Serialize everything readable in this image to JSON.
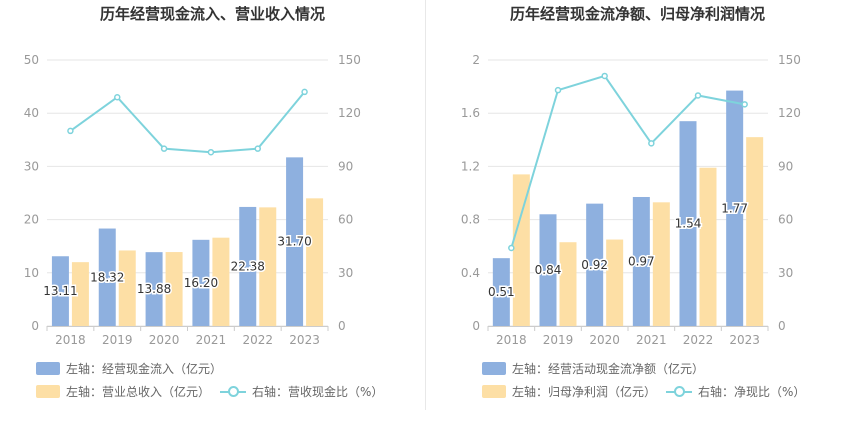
{
  "colors": {
    "bar1": "#8eb0df",
    "bar2": "#fddfa5",
    "line": "#7ed3dc",
    "grid": "#e6e6e6",
    "axisText": "#999999",
    "labelText": "#333333"
  },
  "chart_data": [
    {
      "type": "bar",
      "title": "历年经营现金流入、营业收入情况",
      "categories": [
        "2018",
        "2019",
        "2020",
        "2021",
        "2022",
        "2023"
      ],
      "y_left": {
        "min": 0,
        "max": 50,
        "ticks": [
          "0",
          "10",
          "20",
          "30",
          "40",
          "50"
        ]
      },
      "y_right": {
        "min": 0,
        "max": 150,
        "ticks": [
          "0",
          "30",
          "60",
          "90",
          "120",
          "150"
        ]
      },
      "series": [
        {
          "name": "左轴：经营现金流入（亿元）",
          "kind": "bar",
          "axis": "left",
          "values": [
            13.11,
            18.32,
            13.88,
            16.2,
            22.38,
            31.7
          ],
          "labels": [
            "13.11",
            "18.32",
            "13.88",
            "16.20",
            "22.38",
            "31.70"
          ]
        },
        {
          "name": "左轴：营业总收入（亿元）",
          "kind": "bar",
          "axis": "left",
          "values": [
            12.0,
            14.2,
            13.9,
            16.6,
            22.3,
            24.0
          ]
        },
        {
          "name": "右轴：营收现金比（%）",
          "kind": "line",
          "axis": "right",
          "values": [
            110,
            129,
            100,
            98,
            100,
            132
          ]
        }
      ]
    },
    {
      "type": "bar",
      "title": "历年经营现金流净额、归母净利润情况",
      "categories": [
        "2018",
        "2019",
        "2020",
        "2021",
        "2022",
        "2023"
      ],
      "y_left": {
        "min": 0,
        "max": 2,
        "ticks": [
          "0",
          "0.4",
          "0.8",
          "1.2",
          "1.6",
          "2"
        ]
      },
      "y_right": {
        "min": 0,
        "max": 150,
        "ticks": [
          "0",
          "30",
          "60",
          "90",
          "120",
          "150"
        ]
      },
      "series": [
        {
          "name": "左轴：经营活动现金流净额（亿元）",
          "kind": "bar",
          "axis": "left",
          "values": [
            0.51,
            0.84,
            0.92,
            0.97,
            1.54,
            1.77
          ],
          "labels": [
            "0.51",
            "0.84",
            "0.92",
            "0.97",
            "1.54",
            "1.77"
          ]
        },
        {
          "name": "左轴：归母净利润（亿元）",
          "kind": "bar",
          "axis": "left",
          "values": [
            1.14,
            0.63,
            0.65,
            0.93,
            1.19,
            1.42
          ]
        },
        {
          "name": "右轴：净现比（%）",
          "kind": "line",
          "axis": "right",
          "values": [
            44,
            133,
            141,
            103,
            130,
            125
          ]
        }
      ]
    }
  ]
}
